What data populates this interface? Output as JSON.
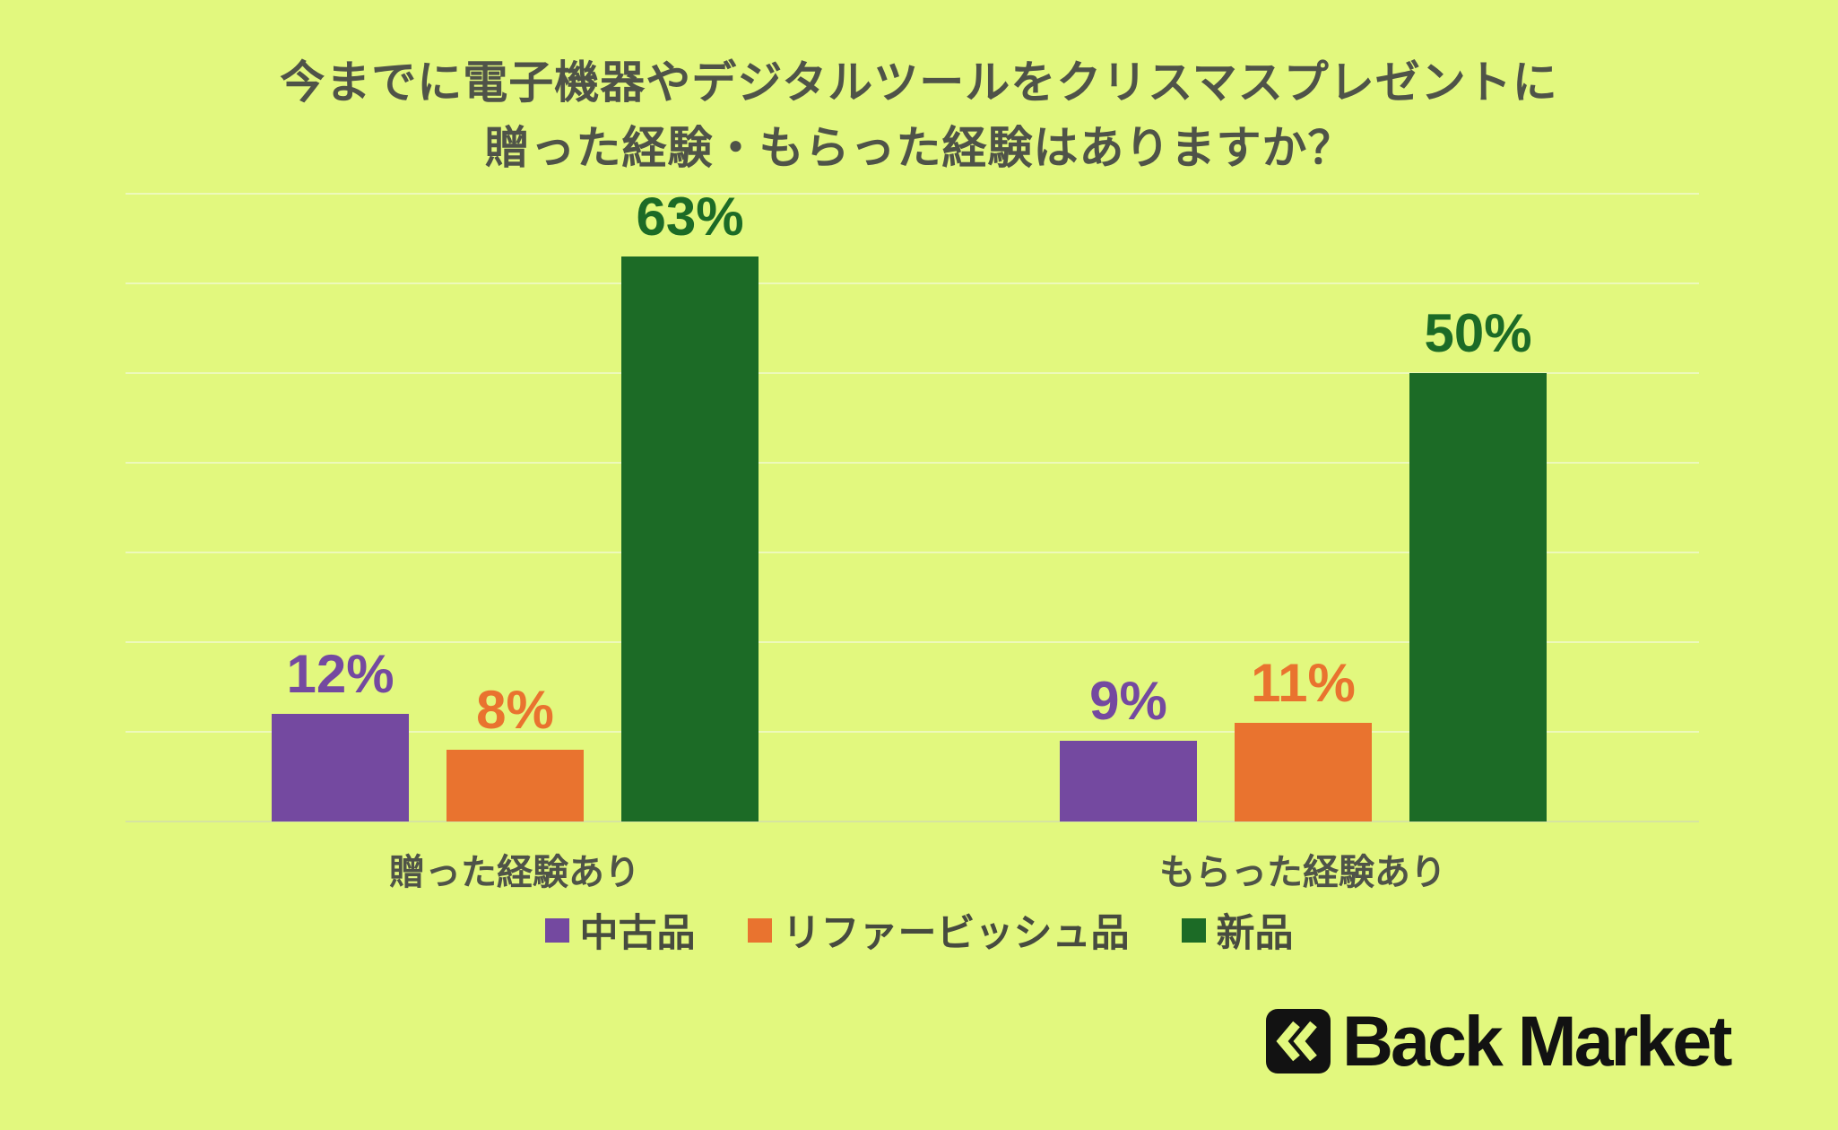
{
  "title": {
    "line1": "今までに電子機器やデジタルツールをクリスマスプレゼントに",
    "line2": "贈った経験・もらった経験はありますか？"
  },
  "chart_data": {
    "type": "bar",
    "categories": [
      "贈った経験あり",
      "もらった経験あり"
    ],
    "series": [
      {
        "name": "中古品",
        "color": "#7449A0",
        "values": [
          12,
          9
        ]
      },
      {
        "name": "リファービッシュ品",
        "color": "#E9732F",
        "values": [
          8,
          11
        ]
      },
      {
        "name": "新品",
        "color": "#1C6B26",
        "values": [
          63,
          50
        ]
      }
    ],
    "value_labels": [
      [
        "12%",
        "9%"
      ],
      [
        "8%",
        "11%"
      ],
      [
        "63%",
        "50%"
      ]
    ],
    "value_label_format": "{v}%",
    "ylim": [
      0,
      70
    ],
    "gridline_step": 10,
    "grid": true,
    "legend_position": "bottom",
    "value_labels_shown": true
  },
  "colors": {
    "background": "#E2F87E",
    "title_text": "#4F5348",
    "category_text": "#4F5348",
    "legend_text": "#474B3F",
    "gridline": "#EDF9BB",
    "baseline": "#D6E4A0",
    "logo_black": "#121212"
  },
  "logo": {
    "text": "Back Market",
    "icon": "double-chevron-left"
  }
}
